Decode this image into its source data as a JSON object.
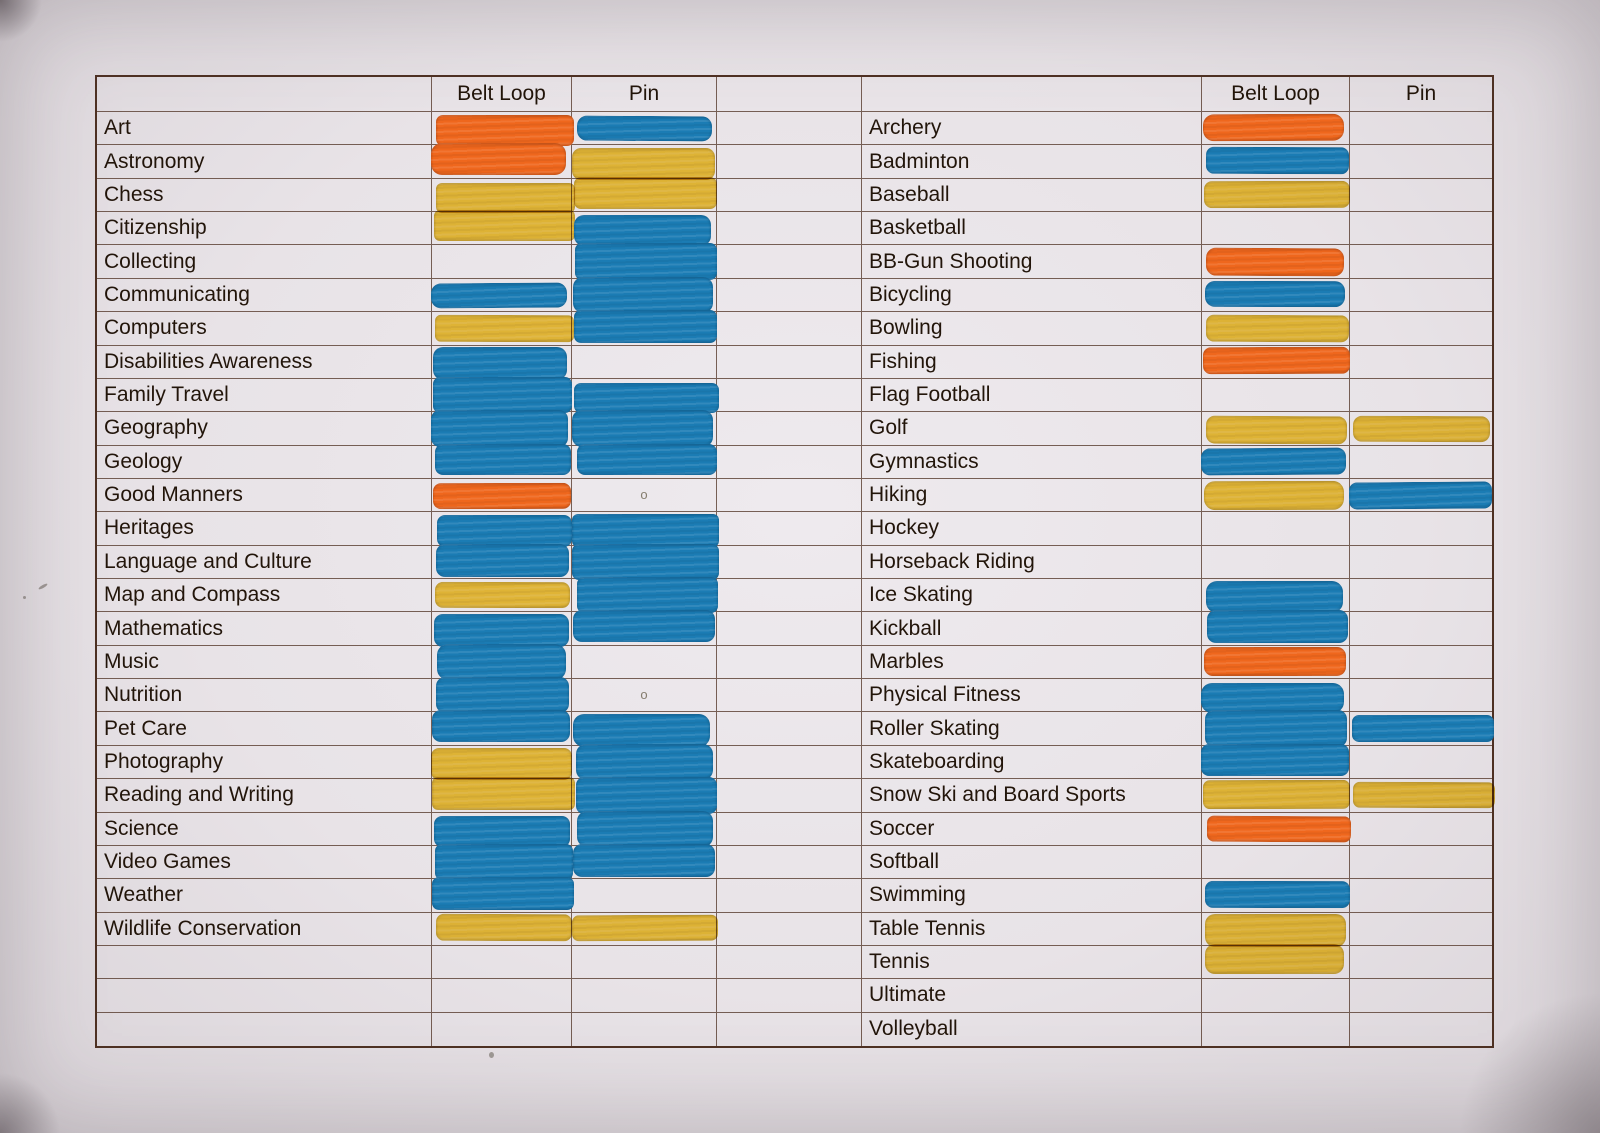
{
  "page": {
    "paper_color": "#e8e3e7",
    "grid_color": "#4e3123",
    "text_color": "#22150a"
  },
  "colors": {
    "orange": "#ef671d",
    "blue": "#1b7cb4",
    "yellow": "#f2c42f",
    "pencil": "#857d6e"
  },
  "columns": {
    "belt_loop": "Belt Loop",
    "pin": "Pin"
  },
  "tables": [
    {
      "id": "left",
      "rows": [
        {
          "label": "Art",
          "belt_loop": "orange",
          "pin": "blue"
        },
        {
          "label": "Astronomy",
          "belt_loop": "orange",
          "pin": "yellow"
        },
        {
          "label": "Chess",
          "belt_loop": "yellow",
          "pin": "yellow"
        },
        {
          "label": "Citizenship",
          "belt_loop": "yellow",
          "pin": "blue"
        },
        {
          "label": "Collecting",
          "belt_loop": null,
          "pin": "blue"
        },
        {
          "label": "Communicating",
          "belt_loop": "blue",
          "pin": "blue"
        },
        {
          "label": "Computers",
          "belt_loop": "yellow",
          "pin": "blue"
        },
        {
          "label": "Disabilities Awareness",
          "belt_loop": "blue",
          "pin": null
        },
        {
          "label": "Family Travel",
          "belt_loop": "blue",
          "pin": "blue"
        },
        {
          "label": "Geography",
          "belt_loop": "blue",
          "pin": "blue"
        },
        {
          "label": "Geology",
          "belt_loop": "blue",
          "pin": "blue"
        },
        {
          "label": "Good Manners",
          "belt_loop": "orange",
          "pin": null,
          "pin_note": "o"
        },
        {
          "label": "Heritages",
          "belt_loop": "blue",
          "pin": "blue"
        },
        {
          "label": "Language and Culture",
          "belt_loop": "blue",
          "pin": "blue"
        },
        {
          "label": "Map and Compass",
          "belt_loop": "yellow",
          "pin": "blue"
        },
        {
          "label": "Mathematics",
          "belt_loop": "blue",
          "pin": "blue"
        },
        {
          "label": "Music",
          "belt_loop": "blue",
          "pin": null
        },
        {
          "label": "Nutrition",
          "belt_loop": "blue",
          "pin": null,
          "pin_note": "o"
        },
        {
          "label": "Pet Care",
          "belt_loop": "blue",
          "pin": "blue"
        },
        {
          "label": "Photography",
          "belt_loop": "yellow",
          "pin": "blue"
        },
        {
          "label": "Reading and Writing",
          "belt_loop": "yellow",
          "pin": "blue"
        },
        {
          "label": "Science",
          "belt_loop": "blue",
          "pin": "blue"
        },
        {
          "label": "Video Games",
          "belt_loop": "blue",
          "pin": "blue"
        },
        {
          "label": "Weather",
          "belt_loop": "blue",
          "pin": null
        },
        {
          "label": "Wildlife Conservation",
          "belt_loop": "yellow",
          "pin": "yellow"
        },
        {
          "label": "",
          "belt_loop": null,
          "pin": null
        },
        {
          "label": "",
          "belt_loop": null,
          "pin": null
        },
        {
          "label": "",
          "belt_loop": null,
          "pin": null
        }
      ]
    },
    {
      "id": "right",
      "rows": [
        {
          "label": "Archery",
          "belt_loop": "orange",
          "pin": null
        },
        {
          "label": "Badminton",
          "belt_loop": "blue",
          "pin": null
        },
        {
          "label": "Baseball",
          "belt_loop": "yellow",
          "pin": null
        },
        {
          "label": "Basketball",
          "belt_loop": null,
          "pin": null
        },
        {
          "label": "BB-Gun Shooting",
          "belt_loop": "orange",
          "pin": null
        },
        {
          "label": "Bicycling",
          "belt_loop": "blue",
          "pin": null
        },
        {
          "label": "Bowling",
          "belt_loop": "yellow",
          "pin": null
        },
        {
          "label": "Fishing",
          "belt_loop": "orange",
          "pin": null
        },
        {
          "label": "Flag Football",
          "belt_loop": null,
          "pin": null
        },
        {
          "label": "Golf",
          "belt_loop": "yellow",
          "pin": "yellow"
        },
        {
          "label": "Gymnastics",
          "belt_loop": "blue",
          "pin": null
        },
        {
          "label": "Hiking",
          "belt_loop": "yellow",
          "pin": "blue"
        },
        {
          "label": "Hockey",
          "belt_loop": null,
          "pin": null
        },
        {
          "label": "Horseback Riding",
          "belt_loop": null,
          "pin": null
        },
        {
          "label": "Ice Skating",
          "belt_loop": "blue",
          "pin": null
        },
        {
          "label": "Kickball",
          "belt_loop": "blue",
          "pin": null
        },
        {
          "label": "Marbles",
          "belt_loop": "orange",
          "pin": null
        },
        {
          "label": "Physical Fitness",
          "belt_loop": "blue",
          "pin": null
        },
        {
          "label": "Roller Skating",
          "belt_loop": "blue",
          "pin": "blue"
        },
        {
          "label": "Skateboarding",
          "belt_loop": "blue",
          "pin": null
        },
        {
          "label": "Snow Ski and Board Sports",
          "belt_loop": "yellow",
          "pin": "yellow"
        },
        {
          "label": "Soccer",
          "belt_loop": "orange",
          "pin": null
        },
        {
          "label": "Softball",
          "belt_loop": null,
          "pin": null
        },
        {
          "label": "Swimming",
          "belt_loop": "blue",
          "pin": null
        },
        {
          "label": "Table Tennis",
          "belt_loop": "yellow",
          "pin": null
        },
        {
          "label": "Tennis",
          "belt_loop": "yellow",
          "pin": null
        },
        {
          "label": "Ultimate",
          "belt_loop": null,
          "pin": null
        },
        {
          "label": "Volleyball",
          "belt_loop": null,
          "pin": null
        }
      ]
    }
  ]
}
